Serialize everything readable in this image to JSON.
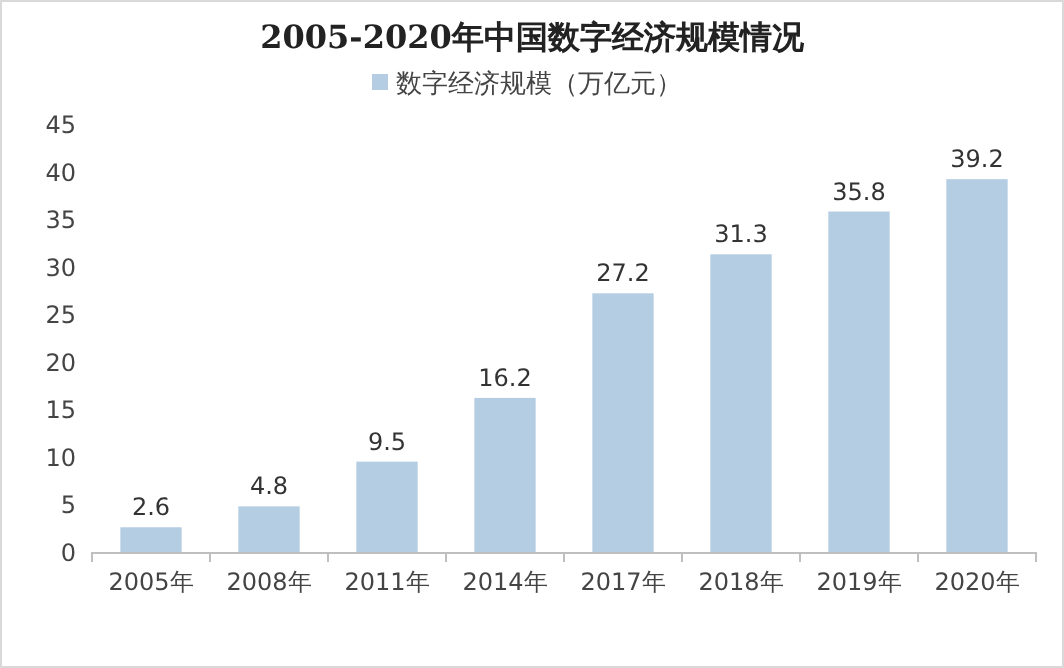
{
  "chart_data": {
    "type": "bar",
    "title": "2005-2020年中国数字经济规模情况",
    "categories": [
      "2005年",
      "2008年",
      "2011年",
      "2014年",
      "2017年",
      "2018年",
      "2019年",
      "2020年"
    ],
    "series": [
      {
        "name": "数字经济规模（万亿元）",
        "color": "#b4cde2",
        "values": [
          2.6,
          4.8,
          9.5,
          16.2,
          27.2,
          31.3,
          35.8,
          39.2
        ]
      }
    ],
    "data_labels": true,
    "ylim": [
      0,
      45
    ],
    "yticks": [
      0,
      5,
      10,
      15,
      20,
      25,
      30,
      35,
      40,
      45
    ],
    "grid": false,
    "legend": "top"
  }
}
